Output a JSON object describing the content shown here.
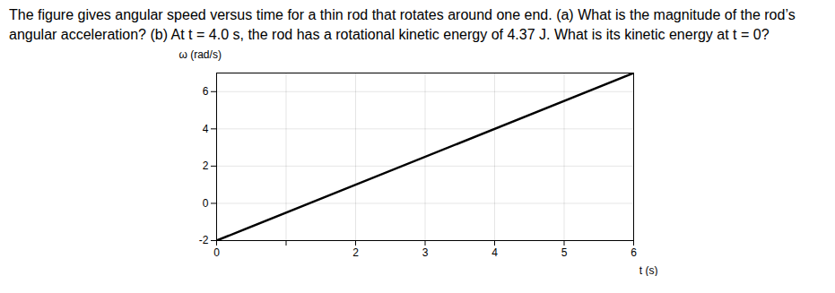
{
  "chart_data": {
    "type": "line",
    "title": "The figure gives angular speed versus time for a thin rod that rotates around one end. (a) What is the magnitude of the rod’s angular acceleration? (b) At t = 4.0 s, the rod has a rotational kinetic energy of 4.37 J. What is its kinetic energy at t = 0?",
    "xlabel": "t (s)",
    "ylabel": "ω (rad/s)",
    "x": [
      0,
      6
    ],
    "values": [
      -2,
      7
    ],
    "color": "#000000",
    "xlim": [
      0,
      6
    ],
    "ylim": [
      -2,
      7
    ],
    "xticks": [
      0,
      {
        "value": 1,
        "label": null
      },
      2,
      3,
      4,
      5,
      6
    ],
    "yticks": [
      -2,
      0,
      2,
      4,
      6
    ],
    "grid": true
  }
}
